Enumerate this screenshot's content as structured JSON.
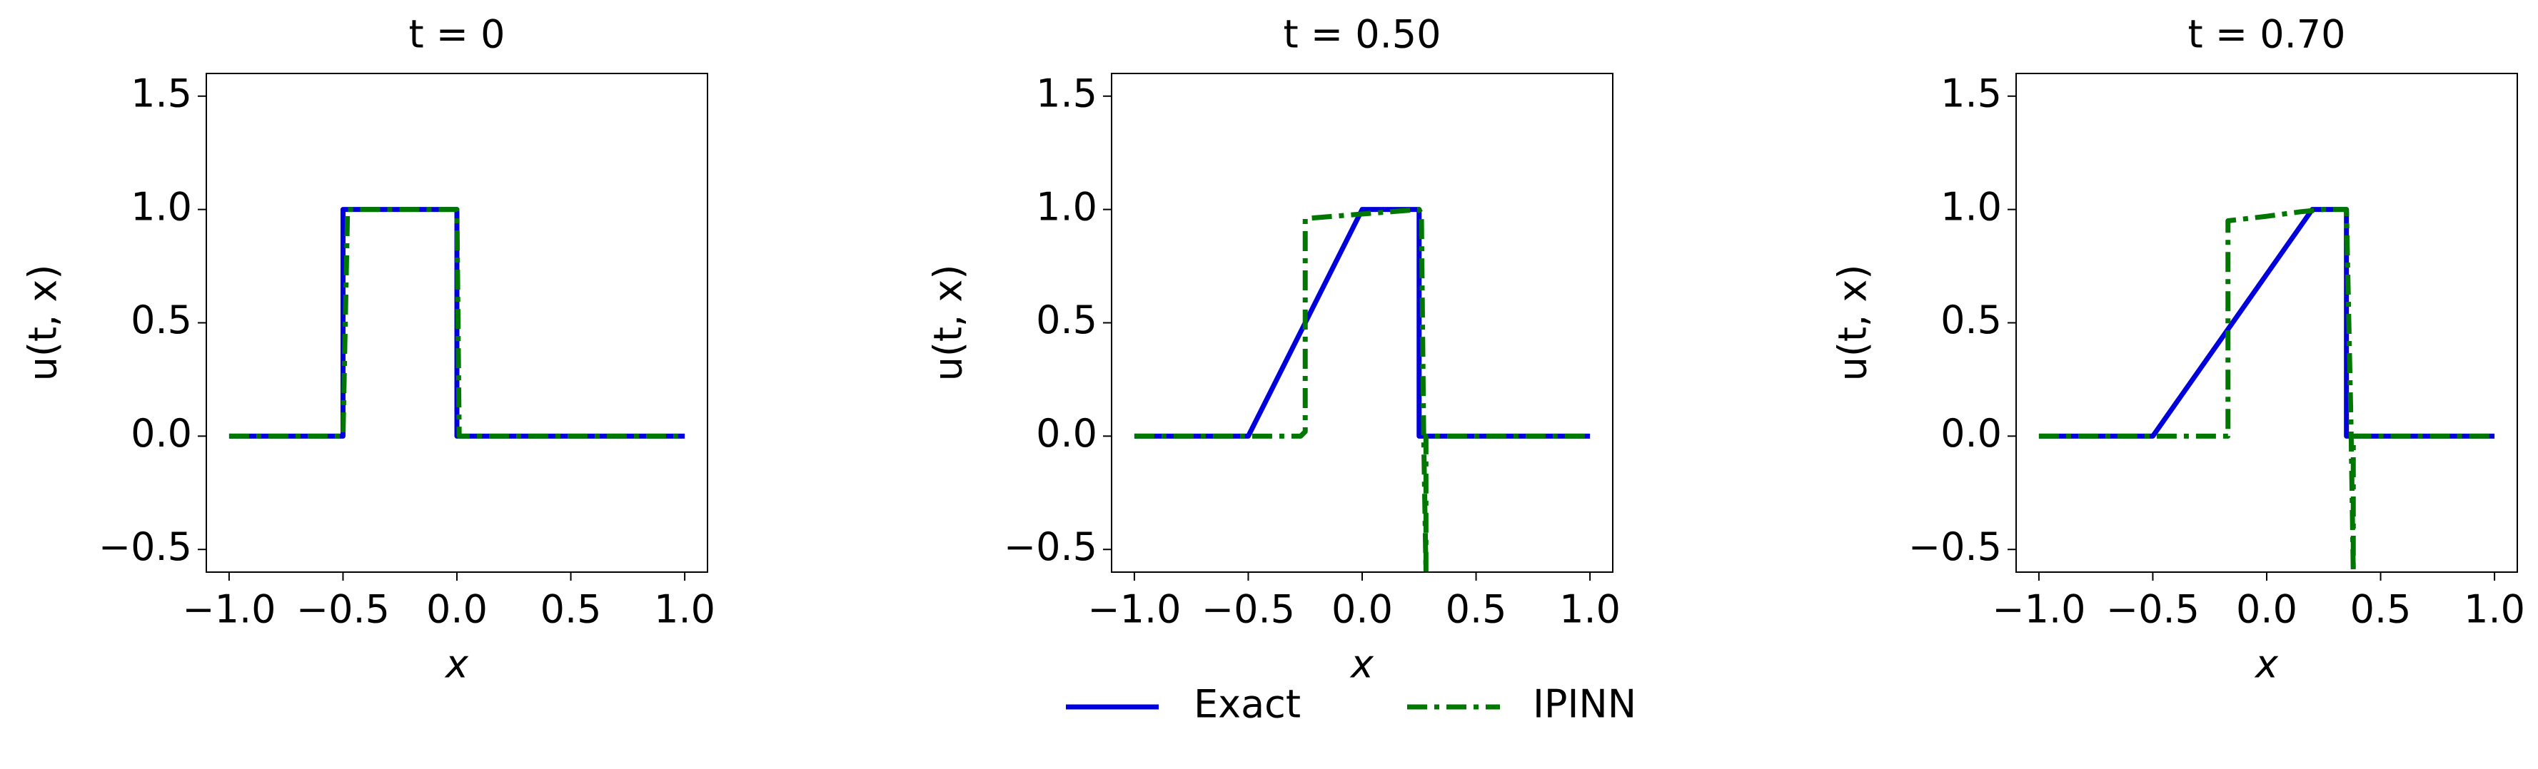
{
  "chart_data": [
    {
      "type": "line",
      "title": "t = 0",
      "x_label": "x",
      "y_label": "u(t, x)",
      "xlim": [
        -1.1,
        1.1
      ],
      "ylim": [
        -0.6,
        1.6
      ],
      "xticks": [
        {
          "value": -1,
          "label": "−1.0"
        },
        {
          "value": -0.5,
          "label": "−0.5"
        },
        {
          "value": 0,
          "label": "0.0"
        },
        {
          "value": 0.5,
          "label": "0.5"
        },
        {
          "value": 1,
          "label": "1.0"
        }
      ],
      "yticks": [
        {
          "value": -0.5,
          "label": "−0.5"
        },
        {
          "value": 0,
          "label": "0.0"
        },
        {
          "value": 0.5,
          "label": "0.5"
        },
        {
          "value": 1,
          "label": "1.0"
        },
        {
          "value": 1.5,
          "label": "1.5"
        }
      ],
      "series": [
        {
          "name": "Exact",
          "color": "#0000dd",
          "style": "solid",
          "x": [
            -1,
            -0.5,
            -0.5,
            0,
            0,
            1
          ],
          "values": [
            0,
            0,
            1,
            1,
            0,
            0
          ]
        },
        {
          "name": "IPINN",
          "color": "#007700",
          "style": "dashdot",
          "x": [
            -1,
            -0.5,
            -0.48,
            0,
            0.01,
            1
          ],
          "values": [
            0,
            0,
            1,
            1,
            0,
            0
          ]
        }
      ]
    },
    {
      "type": "line",
      "title": "t = 0.50",
      "x_label": "x",
      "y_label": "u(t, x)",
      "xlim": [
        -1.1,
        1.1
      ],
      "ylim": [
        -0.6,
        1.6
      ],
      "xticks": [
        {
          "value": -1,
          "label": "−1.0"
        },
        {
          "value": -0.5,
          "label": "−0.5"
        },
        {
          "value": 0,
          "label": "0.0"
        },
        {
          "value": 0.5,
          "label": "0.5"
        },
        {
          "value": 1,
          "label": "1.0"
        }
      ],
      "yticks": [
        {
          "value": -0.5,
          "label": "−0.5"
        },
        {
          "value": 0,
          "label": "0.0"
        },
        {
          "value": 0.5,
          "label": "0.5"
        },
        {
          "value": 1,
          "label": "1.0"
        },
        {
          "value": 1.5,
          "label": "1.5"
        }
      ],
      "series": [
        {
          "name": "Exact",
          "color": "#0000dd",
          "style": "solid",
          "x": [
            -1,
            -0.5,
            0,
            0.25,
            0.25,
            1
          ],
          "values": [
            0,
            0,
            1,
            1,
            0,
            0
          ]
        },
        {
          "name": "IPINN",
          "color": "#007700",
          "style": "dashdot",
          "x": [
            -1,
            -0.27,
            -0.25,
            -0.25,
            0,
            0.25,
            0.26,
            0.27,
            0.28,
            0.28,
            1
          ],
          "values": [
            0,
            0,
            0.02,
            0.96,
            0.98,
            1,
            0.98,
            0,
            -0.6,
            0,
            0
          ]
        }
      ]
    },
    {
      "type": "line",
      "title": "t = 0.70",
      "x_label": "x",
      "y_label": "u(t, x)",
      "xlim": [
        -1.1,
        1.1
      ],
      "ylim": [
        -0.6,
        1.6
      ],
      "xticks": [
        {
          "value": -1,
          "label": "−1.0"
        },
        {
          "value": -0.5,
          "label": "−0.5"
        },
        {
          "value": 0,
          "label": "0.0"
        },
        {
          "value": 0.5,
          "label": "0.5"
        },
        {
          "value": 1,
          "label": "1.0"
        }
      ],
      "yticks": [
        {
          "value": -0.5,
          "label": "−0.5"
        },
        {
          "value": 0,
          "label": "0.0"
        },
        {
          "value": 0.5,
          "label": "0.5"
        },
        {
          "value": 1,
          "label": "1.0"
        },
        {
          "value": 1.5,
          "label": "1.5"
        }
      ],
      "series": [
        {
          "name": "Exact",
          "color": "#0000dd",
          "style": "solid",
          "x": [
            -1,
            -0.5,
            0.2,
            0.35,
            0.35,
            1
          ],
          "values": [
            0,
            0,
            1,
            1,
            0,
            0
          ]
        },
        {
          "name": "IPINN",
          "color": "#007700",
          "style": "dashdot",
          "x": [
            -1,
            -0.17,
            -0.17,
            0,
            0.15,
            0.25,
            0.35,
            0.37,
            0.38,
            0.38,
            0.4,
            1
          ],
          "values": [
            0,
            0,
            0.95,
            0.97,
            0.99,
            1,
            1,
            0.05,
            -0.6,
            0,
            0,
            0
          ]
        }
      ]
    }
  ]
}
